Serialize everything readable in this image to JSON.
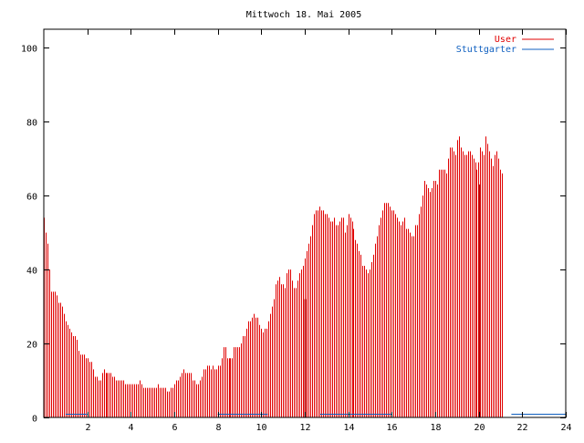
{
  "chart_data": {
    "type": "bar",
    "title": "Mittwoch 18. Mai 2005",
    "xlabel": "",
    "ylabel": "",
    "xlim": [
      0,
      24
    ],
    "ylim": [
      0,
      105
    ],
    "x_ticks": [
      2,
      4,
      6,
      8,
      10,
      12,
      14,
      16,
      18,
      20,
      22,
      24
    ],
    "y_ticks": [
      0,
      20,
      40,
      60,
      80,
      100
    ],
    "grid": false,
    "legend_position": "top-right",
    "x_step_hours": 0.0833,
    "series": [
      {
        "name": "User",
        "color": "#e00000",
        "values": [
          54,
          50,
          47,
          40,
          34,
          34,
          34,
          33,
          31,
          31,
          30,
          28,
          26,
          25,
          24,
          23,
          22,
          22,
          21,
          18,
          17,
          17,
          17,
          16,
          16,
          15,
          15,
          13,
          11,
          11,
          10,
          10,
          12,
          13,
          12,
          12,
          12,
          12,
          11,
          11,
          10,
          10,
          10,
          10,
          10,
          9,
          9,
          9,
          9,
          9,
          9,
          9,
          9,
          10,
          9,
          8,
          8,
          8,
          8,
          8,
          8,
          8,
          8,
          9,
          8,
          8,
          8,
          8,
          7,
          7,
          8,
          8,
          9,
          10,
          10,
          11,
          12,
          13,
          12,
          12,
          12,
          12,
          10,
          10,
          9,
          9,
          10,
          11,
          13,
          13,
          14,
          14,
          13,
          14,
          13,
          13,
          14,
          14,
          16,
          19,
          19,
          16,
          16,
          16,
          16,
          19,
          19,
          19,
          19,
          20,
          22,
          22,
          24,
          26,
          26,
          27,
          28,
          27,
          27,
          25,
          24,
          23,
          24,
          24,
          26,
          28,
          30,
          32,
          36,
          37,
          38,
          36,
          36,
          35,
          39,
          40,
          40,
          37,
          35,
          35,
          37,
          39,
          40,
          41,
          43,
          45,
          47,
          49,
          52,
          55,
          56,
          56,
          57,
          56,
          56,
          55,
          55,
          54,
          53,
          53,
          54,
          52,
          52,
          53,
          54,
          54,
          50,
          52,
          55,
          54,
          53,
          51,
          48,
          47,
          45,
          44,
          41,
          41,
          40,
          39,
          40,
          42,
          44,
          47,
          49,
          52,
          54,
          56,
          58,
          58,
          58,
          57,
          56,
          56,
          55,
          54,
          53,
          52,
          53,
          54,
          51,
          51,
          50,
          49,
          49,
          52,
          52,
          55,
          57,
          60,
          64,
          63,
          62,
          61,
          62,
          64,
          64,
          63,
          67,
          67,
          67,
          67,
          66,
          70,
          73,
          73,
          72,
          71,
          75,
          76,
          73,
          72,
          71,
          71,
          72,
          72,
          71,
          70,
          69,
          67,
          69,
          73,
          72,
          71,
          76,
          74,
          72,
          70,
          68,
          71,
          72,
          70,
          67,
          66
        ]
      },
      {
        "name": "Stuttgarter",
        "color": "#1060c0",
        "values": [
          0,
          0,
          0,
          0,
          0,
          0,
          0,
          0,
          0,
          0,
          0,
          0,
          0,
          0,
          0,
          0,
          0,
          0,
          0,
          0,
          0,
          0,
          0,
          0,
          0,
          0,
          0,
          0,
          0,
          0,
          0,
          0,
          0,
          0,
          0,
          0,
          0,
          0,
          0,
          0,
          0,
          0,
          0,
          0,
          0,
          0,
          0,
          0,
          0,
          0,
          0,
          0,
          0,
          0,
          0,
          0,
          0,
          0,
          0,
          0,
          0,
          0,
          0,
          0,
          0,
          0,
          0,
          0,
          0,
          0,
          0,
          0,
          0,
          0,
          0,
          0,
          0,
          0,
          0,
          0,
          0,
          0,
          0,
          0,
          0,
          0,
          0,
          0,
          0,
          0,
          0,
          0,
          0,
          0,
          0,
          0,
          0,
          0,
          0,
          0,
          0,
          0,
          0,
          0,
          0,
          0,
          0,
          0,
          0,
          0,
          0,
          0,
          0,
          0,
          0,
          0,
          0,
          0,
          0,
          0,
          0,
          0,
          0,
          0,
          0,
          0,
          0,
          0,
          0,
          0,
          0,
          0,
          0,
          0,
          0,
          0,
          0,
          0,
          0,
          0,
          0,
          0,
          0,
          0,
          0,
          0,
          0,
          0,
          0,
          0,
          0,
          0,
          0,
          0,
          0,
          0,
          0,
          0,
          0,
          0,
          0,
          0,
          0,
          0,
          0,
          0,
          0,
          0,
          0,
          0,
          0,
          0,
          0,
          0,
          0,
          0,
          0,
          0,
          0,
          0,
          0,
          0,
          0,
          0,
          0,
          0,
          0,
          0,
          0,
          0,
          0,
          0,
          0,
          0,
          0,
          0,
          0,
          0,
          0,
          0,
          0,
          0,
          0,
          0,
          0,
          0,
          0,
          0,
          0,
          0,
          0,
          0,
          0,
          0,
          0,
          0,
          0,
          0,
          0,
          0,
          0,
          0,
          0,
          0,
          0,
          0,
          0,
          0,
          0,
          0,
          0,
          0,
          0,
          0,
          0,
          0,
          0,
          0,
          0,
          0,
          0,
          0,
          0,
          0,
          0,
          0,
          0,
          0,
          0,
          0,
          0,
          0,
          0,
          0,
          0,
          0,
          0,
          0,
          0,
          0,
          0
        ]
      }
    ],
    "highlight_marks": [
      {
        "x": 12,
        "value": 32,
        "color": "#c00000"
      },
      {
        "x": 20,
        "value": 63,
        "color": "#c00000"
      }
    ],
    "baseline_segments": [
      {
        "from": 1.0,
        "to": 2.0,
        "color": "#1060c0"
      },
      {
        "from": 8.0,
        "to": 10.3,
        "color": "#1060c0"
      },
      {
        "from": 12.7,
        "to": 16.0,
        "color": "#1060c0"
      },
      {
        "from": 21.5,
        "to": 24.0,
        "color": "#1060c0"
      }
    ]
  }
}
